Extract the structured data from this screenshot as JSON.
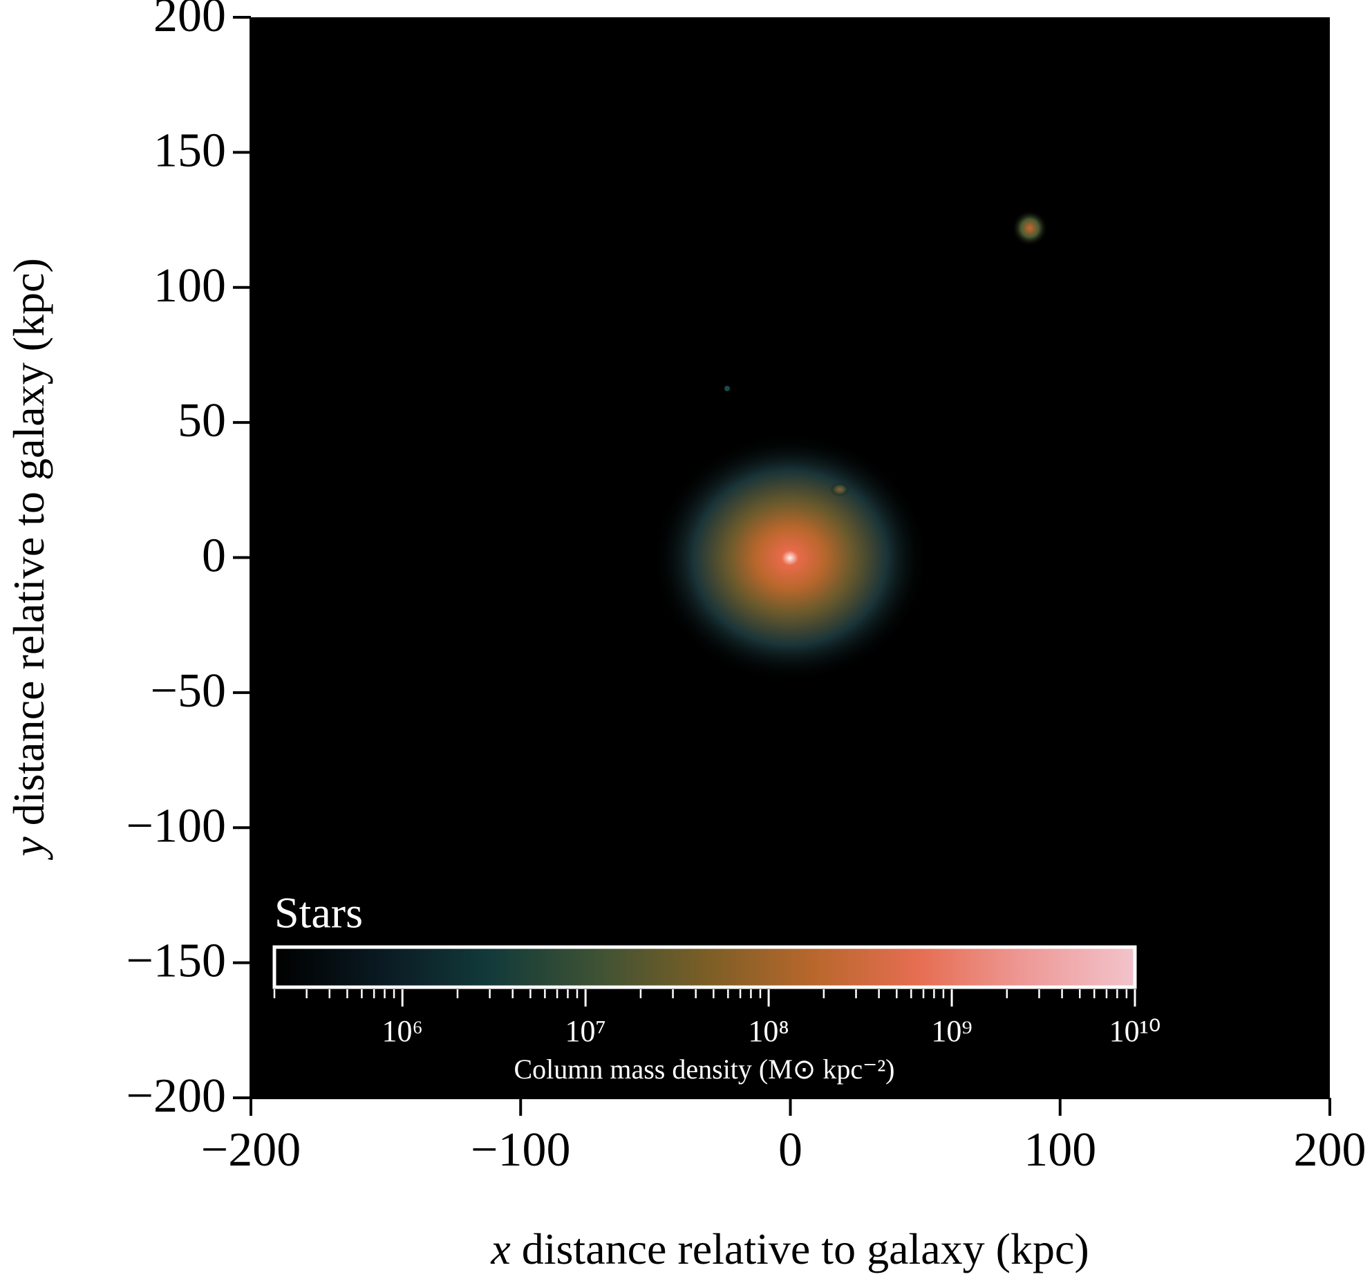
{
  "chart_data": {
    "type": "image",
    "xlabel": "x distance relative to galaxy (kpc)",
    "ylabel": "y distance relative to galaxy (kpc)",
    "xlim": [
      -200,
      200
    ],
    "ylim": [
      -200,
      200
    ],
    "xticks": [
      {
        "value": -200,
        "label": "−200"
      },
      {
        "value": -100,
        "label": "−100"
      },
      0,
      100,
      200
    ],
    "yticks": [
      {
        "value": -200,
        "label": "−200"
      },
      {
        "value": -150,
        "label": "−150"
      },
      {
        "value": -100,
        "label": "−100"
      },
      {
        "value": -50,
        "label": "−50"
      },
      0,
      50,
      100,
      150,
      200
    ],
    "background": "#000000",
    "colorbar": {
      "title": "Stars",
      "label": "Column mass density (M⊙ kpc⁻²)",
      "log_scale": true,
      "lim": [
        200000,
        10000000000
      ],
      "ticks": [
        {
          "value": 1000000,
          "label": "10⁶"
        },
        {
          "value": 10000000,
          "label": "10⁷"
        },
        {
          "value": 100000000,
          "label": "10⁸"
        },
        {
          "value": 1000000000,
          "label": "10⁹"
        },
        {
          "value": 10000000000,
          "label": "10¹⁰"
        }
      ],
      "colors": [
        "#000000",
        "#0a1a22",
        "#123a3a",
        "#3e5234",
        "#7a5e26",
        "#b8672c",
        "#e66e52",
        "#ee9a98",
        "#f2c4cc"
      ]
    }
  }
}
